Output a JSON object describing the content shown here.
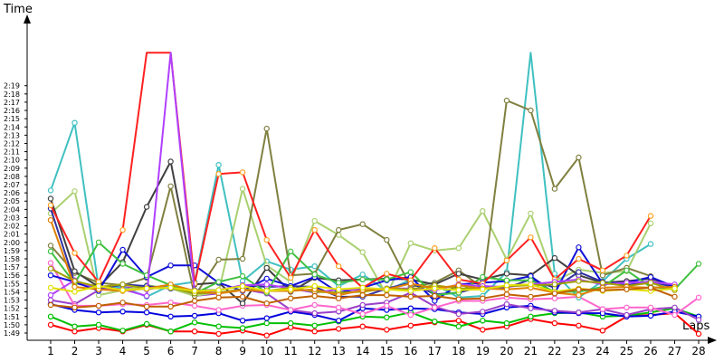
{
  "chart_data": {
    "type": "line",
    "title": "",
    "ylabel": "Time",
    "xlabel": "Laps",
    "x": [
      1,
      2,
      3,
      4,
      5,
      6,
      7,
      8,
      9,
      10,
      11,
      12,
      13,
      14,
      15,
      16,
      17,
      18,
      19,
      20,
      21,
      22,
      23,
      24,
      25,
      26,
      27,
      28
    ],
    "x_tick_labels": [
      "1",
      "2",
      "3",
      "4",
      "5",
      "6",
      "7",
      "8",
      "9",
      "10",
      "11",
      "12",
      "13",
      "14",
      "15",
      "16",
      "17",
      "18",
      "19",
      "20",
      "21",
      "22",
      "23",
      "24",
      "25",
      "26",
      "27",
      "28"
    ],
    "y_tick_labels": [
      "1:49",
      "1:50",
      "1:51",
      "1:52",
      "1:53",
      "1:54",
      "1:55",
      "1:56",
      "1:57",
      "1:58",
      "1:59",
      "2:00",
      "2:01",
      "2:02",
      "2:03",
      "2:04",
      "2:05",
      "2:06",
      "2:07",
      "2:08",
      "2:09",
      "2:10",
      "2:11",
      "2:12",
      "2:13",
      "2:14",
      "2:15",
      "2:16",
      "2:17",
      "2:18",
      "2:19"
    ],
    "ylim_seconds": [
      108,
      143
    ],
    "y_unit": "seconds",
    "grid": false,
    "series": [
      {
        "color": "#ff0000",
        "marker": "#ff0000",
        "values": [
          110,
          109.2,
          109.6,
          109.2,
          110,
          109.2,
          109.2,
          108.9,
          109.3,
          108.7,
          109.7,
          109.2,
          109.5,
          109.8,
          109.4,
          109.9,
          110.3,
          110.5,
          109.4,
          109.8,
          110.7,
          110.2,
          109.9,
          109.3,
          111,
          111.2,
          111.4,
          108.9
        ]
      },
      {
        "color": "#00c000",
        "marker": "#00c000",
        "values": [
          111,
          109.8,
          110,
          109.3,
          110.1,
          109.2,
          110.3,
          109.8,
          109.6,
          110.2,
          110.2,
          109.9,
          110.4,
          111,
          110.9,
          111.5,
          110.4,
          109.8,
          110.5,
          110.2,
          111,
          111.4,
          111.5,
          111,
          111.1,
          111.5,
          112,
          111
        ]
      },
      {
        "color": "#0000dd",
        "marker": "#0000dd",
        "values": [
          112.5,
          111.8,
          111.5,
          111.6,
          111.5,
          111,
          111.1,
          111.4,
          110.5,
          110.8,
          111.6,
          111.2,
          110.5,
          112,
          111.8,
          112,
          111.9,
          111.5,
          111.3,
          112.1,
          112.3,
          111.5,
          111.4,
          111.4,
          111,
          111.1,
          111.6,
          111
        ]
      },
      {
        "color": "#9a40c8",
        "marker": "#9a40c8",
        "values": [
          113,
          112.5,
          114.2,
          114.6,
          114.3,
          114.7,
          113.5,
          113.8,
          114.3,
          113.8,
          111.8,
          111.4,
          111.6,
          112.4,
          112.7,
          113.9,
          112.2,
          111.3,
          111.6,
          112.5,
          112,
          111.7,
          111.5,
          111.9,
          111.2,
          111.9,
          112.1,
          110.6
        ]
      },
      {
        "color": "#ff66cc",
        "marker": "#ff66cc",
        "values": [
          117.5,
          112.3,
          112.3,
          112.5,
          112.4,
          112.7,
          112.3,
          111.8,
          112.3,
          112.4,
          111.8,
          112.4,
          112.1,
          111.3,
          112.3,
          111.2,
          112.1,
          112.9,
          112.9,
          113.3,
          113.1,
          113.2,
          113.4,
          111.9,
          112.1,
          112.1,
          111.2,
          113.3
        ]
      },
      {
        "color": "#40c0c0",
        "marker": "#40c0c0",
        "values": [
          126.3,
          134.5,
          114.5,
          114.6,
          113.4,
          114.8,
          115.2,
          129.4,
          115.3,
          117.7,
          116.7,
          117.1,
          114.7,
          116.1,
          114.1,
          115.5,
          114.9,
          113.3,
          113.5,
          116.4,
          143,
          116.2,
          113.3,
          115.3,
          118,
          119.8,
          null,
          null
        ]
      },
      {
        "color": "#aad070",
        "marker": "#aad070",
        "values": [
          123.5,
          126.2,
          113.6,
          114.2,
          114.8,
          114.4,
          113.5,
          114,
          126.5,
          117.2,
          115.2,
          122.6,
          120.9,
          118.8,
          113.6,
          119.9,
          119,
          119.3,
          123.8,
          117.9,
          123.5,
          115.3,
          116.7,
          116.3,
          116.5,
          122.3,
          null,
          null
        ]
      },
      {
        "color": "#808040",
        "marker": "#808040",
        "values": [
          119.6,
          116.3,
          115.1,
          114.8,
          115.7,
          126.8,
          113.5,
          117.9,
          118,
          133.8,
          116,
          116.2,
          121.5,
          122.2,
          120.3,
          114.6,
          115.1,
          116.6,
          114.5,
          137.2,
          136,
          126.5,
          130.3,
          116,
          116.9,
          115.9,
          null,
          null
        ]
      },
      {
        "color": "#404040",
        "marker": "#404040",
        "values": [
          125.3,
          116.5,
          114.6,
          117.6,
          124.3,
          129.8,
          114.9,
          115.1,
          112.6,
          116.9,
          114,
          115.7,
          115.4,
          115.5,
          115.6,
          115.5,
          114.9,
          116.2,
          115.5,
          116.2,
          116,
          118.1,
          116,
          115.1,
          115.3,
          115.6,
          114.7,
          null
        ]
      },
      {
        "color": "#3030a0",
        "marker": "#3030a0",
        "values": [
          124.1,
          115.1,
          114.3,
          114.9,
          114.7,
          114.4,
          114.2,
          114.2,
          114.8,
          114.6,
          114.7,
          114.6,
          113.4,
          113.4,
          114.4,
          115.1,
          113.7,
          113.9,
          114.7,
          114.5,
          115.5,
          114.5,
          116.4,
          115.2,
          114.8,
          115.3,
          114.5,
          null
        ]
      },
      {
        "color": "#1010d8",
        "marker": "#1010d8",
        "values": [
          116,
          115.2,
          114.1,
          119.1,
          115.8,
          117.2,
          117.2,
          115.1,
          114.1,
          115.6,
          114.7,
          115.8,
          113.9,
          114.5,
          115.4,
          115.8,
          112.9,
          114.9,
          115.1,
          115.3,
          115.9,
          113.8,
          119.4,
          115,
          115.1,
          115.8,
          114.6,
          null
        ]
      },
      {
        "color": "#40c040",
        "marker": "#40c040",
        "values": [
          118.9,
          115,
          120,
          117.4,
          116,
          114.8,
          113.8,
          115.2,
          115.9,
          113.9,
          118.9,
          116.1,
          115.1,
          115.5,
          115.5,
          116.4,
          113.6,
          113.9,
          115.8,
          115.4,
          115.4,
          114,
          114,
          114.6,
          116.6,
          114.6,
          114.3,
          117.4
        ]
      },
      {
        "color": "#ff2020",
        "marker": "#ffa020",
        "values": [
          124.5,
          118.7,
          115.2,
          121.5,
          143,
          143,
          115,
          128.3,
          128.5,
          120.3,
          115.7,
          121.5,
          117.1,
          114.5,
          116.2,
          115.4,
          119.3,
          115.5,
          115,
          117.8,
          120.6,
          115.5,
          118,
          116.6,
          118.4,
          123.2,
          null,
          null
        ]
      },
      {
        "color": "#b040ff",
        "marker": "#b040ff",
        "values": [
          113.6,
          115.4,
          114.3,
          114.3,
          113.5,
          143,
          113.9,
          114.2,
          114.8,
          114.9,
          114.4,
          113.9,
          114.3,
          114.2,
          114.4,
          114.4,
          114.2,
          114.9,
          114.7,
          114.6,
          114.9,
          115.2,
          115.5,
          114.9,
          115.1,
          115.2,
          114.9,
          null
        ]
      },
      {
        "color": "#a0a000",
        "marker": "#a0a000",
        "values": [
          116.8,
          115.3,
          114.6,
          114.9,
          114.4,
          114.5,
          113.8,
          113.9,
          114.3,
          114.1,
          114.5,
          114,
          113.9,
          114,
          114.4,
          114.3,
          114.8,
          114.4,
          114.4,
          114.7,
          114.8,
          114.9,
          115.3,
          115.1,
          114.7,
          115.1,
          114.2,
          null
        ]
      },
      {
        "color": "#e08000",
        "marker": "#e08000",
        "values": [
          122.7,
          114.6,
          114.3,
          114.1,
          114.4,
          114.9,
          114.1,
          113.8,
          114.2,
          114.1,
          114.1,
          114.3,
          113.6,
          114.2,
          114.3,
          115,
          114.4,
          114.8,
          114.4,
          114.3,
          114.5,
          113.9,
          113.6,
          114.5,
          114.6,
          114.5,
          114.6,
          null
        ]
      },
      {
        "color": "#e0e000",
        "marker": "#e0e000",
        "values": [
          114.5,
          114,
          114.7,
          114.2,
          114.4,
          114.5,
          114.1,
          114.2,
          114.7,
          114.1,
          114.3,
          114.7,
          114.3,
          114.5,
          114.3,
          114.1,
          114.4,
          114.2,
          114.3,
          114.8,
          114.9,
          114,
          114.4,
          114.1,
          114.3,
          114.1,
          114.4,
          null
        ]
      },
      {
        "color": "#c06000",
        "marker": "#c06000",
        "values": [
          112.4,
          112.1,
          112.3,
          112.7,
          112.2,
          112.2,
          112.9,
          113.3,
          113.4,
          112.6,
          113.2,
          113.5,
          113.2,
          113.6,
          113.6,
          113.4,
          113.5,
          113.1,
          113.2,
          113.7,
          113.4,
          113.8,
          114.3,
          114.2,
          114.3,
          114.5,
          113.4,
          null
        ]
      }
    ],
    "partial_series": [
      {
        "color": "#9a40c8",
        "values": [
          143,
          126,
          143
        ]
      },
      {
        "color": "#ff2020",
        "values": [
          143
        ]
      },
      {
        "color": "#40c0c0",
        "values": [
          143
        ]
      }
    ]
  }
}
